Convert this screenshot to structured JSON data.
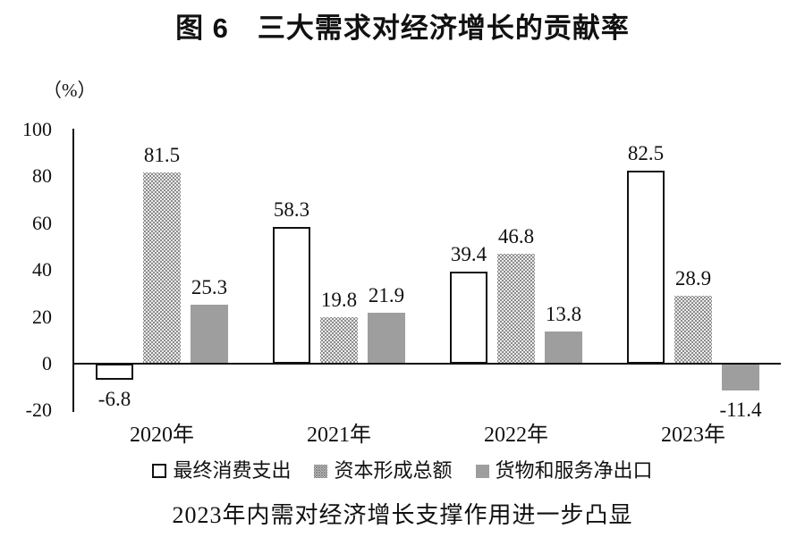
{
  "figure": {
    "title": "图 6　三大需求对经济增长的贡献率",
    "unit_label": "（%）",
    "caption": "2023年内需对经济增长支撑作用进一步凸显"
  },
  "chart_data": {
    "type": "bar",
    "title": "图 6 三大需求对经济增长的贡献率",
    "subtitle": "2023年内需对经济增长支撑作用进一步凸显",
    "ylabel": "（%）",
    "xlabel": "",
    "categories": [
      "2020年",
      "2021年",
      "2022年",
      "2023年"
    ],
    "series": [
      {
        "name": "最终消费支出",
        "style": "outline",
        "values": [
          -6.8,
          58.3,
          39.4,
          82.5
        ]
      },
      {
        "name": "资本形成总额",
        "style": "dotted",
        "values": [
          81.5,
          19.8,
          46.8,
          28.9
        ]
      },
      {
        "name": "货物和服务净出口",
        "style": "gray",
        "values": [
          25.3,
          21.9,
          13.8,
          -11.4
        ]
      }
    ],
    "ylim": [
      -20,
      100
    ],
    "yticks": [
      100,
      80,
      60,
      40,
      20,
      0,
      -20
    ],
    "legend_position": "bottom",
    "grid": false,
    "colors": {
      "bar_gray": "#9e9e9e",
      "dot_gray": "#878787",
      "axis": "#111111",
      "text": "#111111"
    }
  }
}
